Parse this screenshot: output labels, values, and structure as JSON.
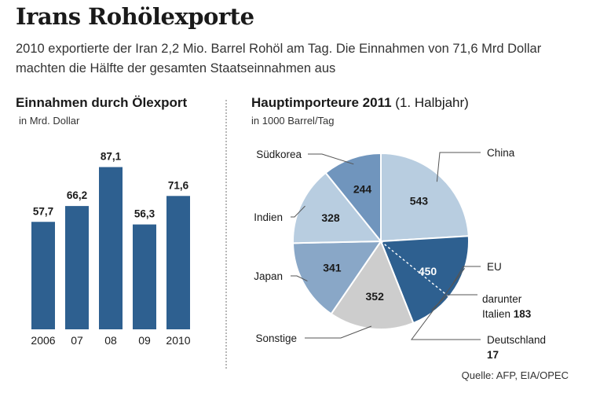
{
  "title": "Irans Rohölexporte",
  "subtitle": "2010 exportierte der Iran 2,2 Mio. Barrel Rohöl am Tag. Die Einnahmen von 71,6 Mrd Dollar machten die Hälfte der gesamten Staatseinnahmen aus",
  "source": "Quelle: AFP, EIA/OPEC",
  "chart_data": [
    {
      "type": "bar",
      "title": "Einnahmen durch Ölexport",
      "ylabel": "in Mrd. Dollar",
      "categories": [
        "2006",
        "07",
        "08",
        "09",
        "2010"
      ],
      "values": [
        57.7,
        66.2,
        87.1,
        56.3,
        71.6
      ],
      "value_labels": [
        "57,7",
        "66,2",
        "87,1",
        "56,3",
        "71,6"
      ],
      "ylim": [
        0,
        100
      ],
      "grid": false,
      "color": "#2e6090"
    },
    {
      "type": "pie",
      "title": "Hauptimporteure 2011",
      "title_suffix": "(1. Halbjahr)",
      "unit": "in 1000 Barrel/Tag",
      "slices": [
        {
          "name": "China",
          "value": 543,
          "label": "543",
          "color": "#b8cde0",
          "text_color": "#1a1a1a"
        },
        {
          "name": "EU",
          "value": 450,
          "label": "450",
          "color": "#2e6090",
          "text_color": "#ffffff"
        },
        {
          "name": "Sonstige",
          "value": 352,
          "label": "352",
          "color": "#cdcdcd",
          "text_color": "#1a1a1a"
        },
        {
          "name": "Japan",
          "value": 341,
          "label": "341",
          "color": "#89a7c7",
          "text_color": "#1a1a1a"
        },
        {
          "name": "Indien",
          "value": 328,
          "label": "328",
          "color": "#b8cde0",
          "text_color": "#1a1a1a"
        },
        {
          "name": "Südkorea",
          "value": 244,
          "label": "244",
          "color": "#7095bd",
          "text_color": "#1a1a1a"
        }
      ],
      "sub_slices": [
        {
          "parent": "EU",
          "name": "darunter Italien",
          "value": 183,
          "label_prefix": "darunter",
          "label_name": "Italien",
          "label_value": "183"
        },
        {
          "parent": "EU",
          "name": "Deutschland",
          "value": 17,
          "label_name": "Deutschland",
          "label_value": "17"
        }
      ]
    }
  ]
}
